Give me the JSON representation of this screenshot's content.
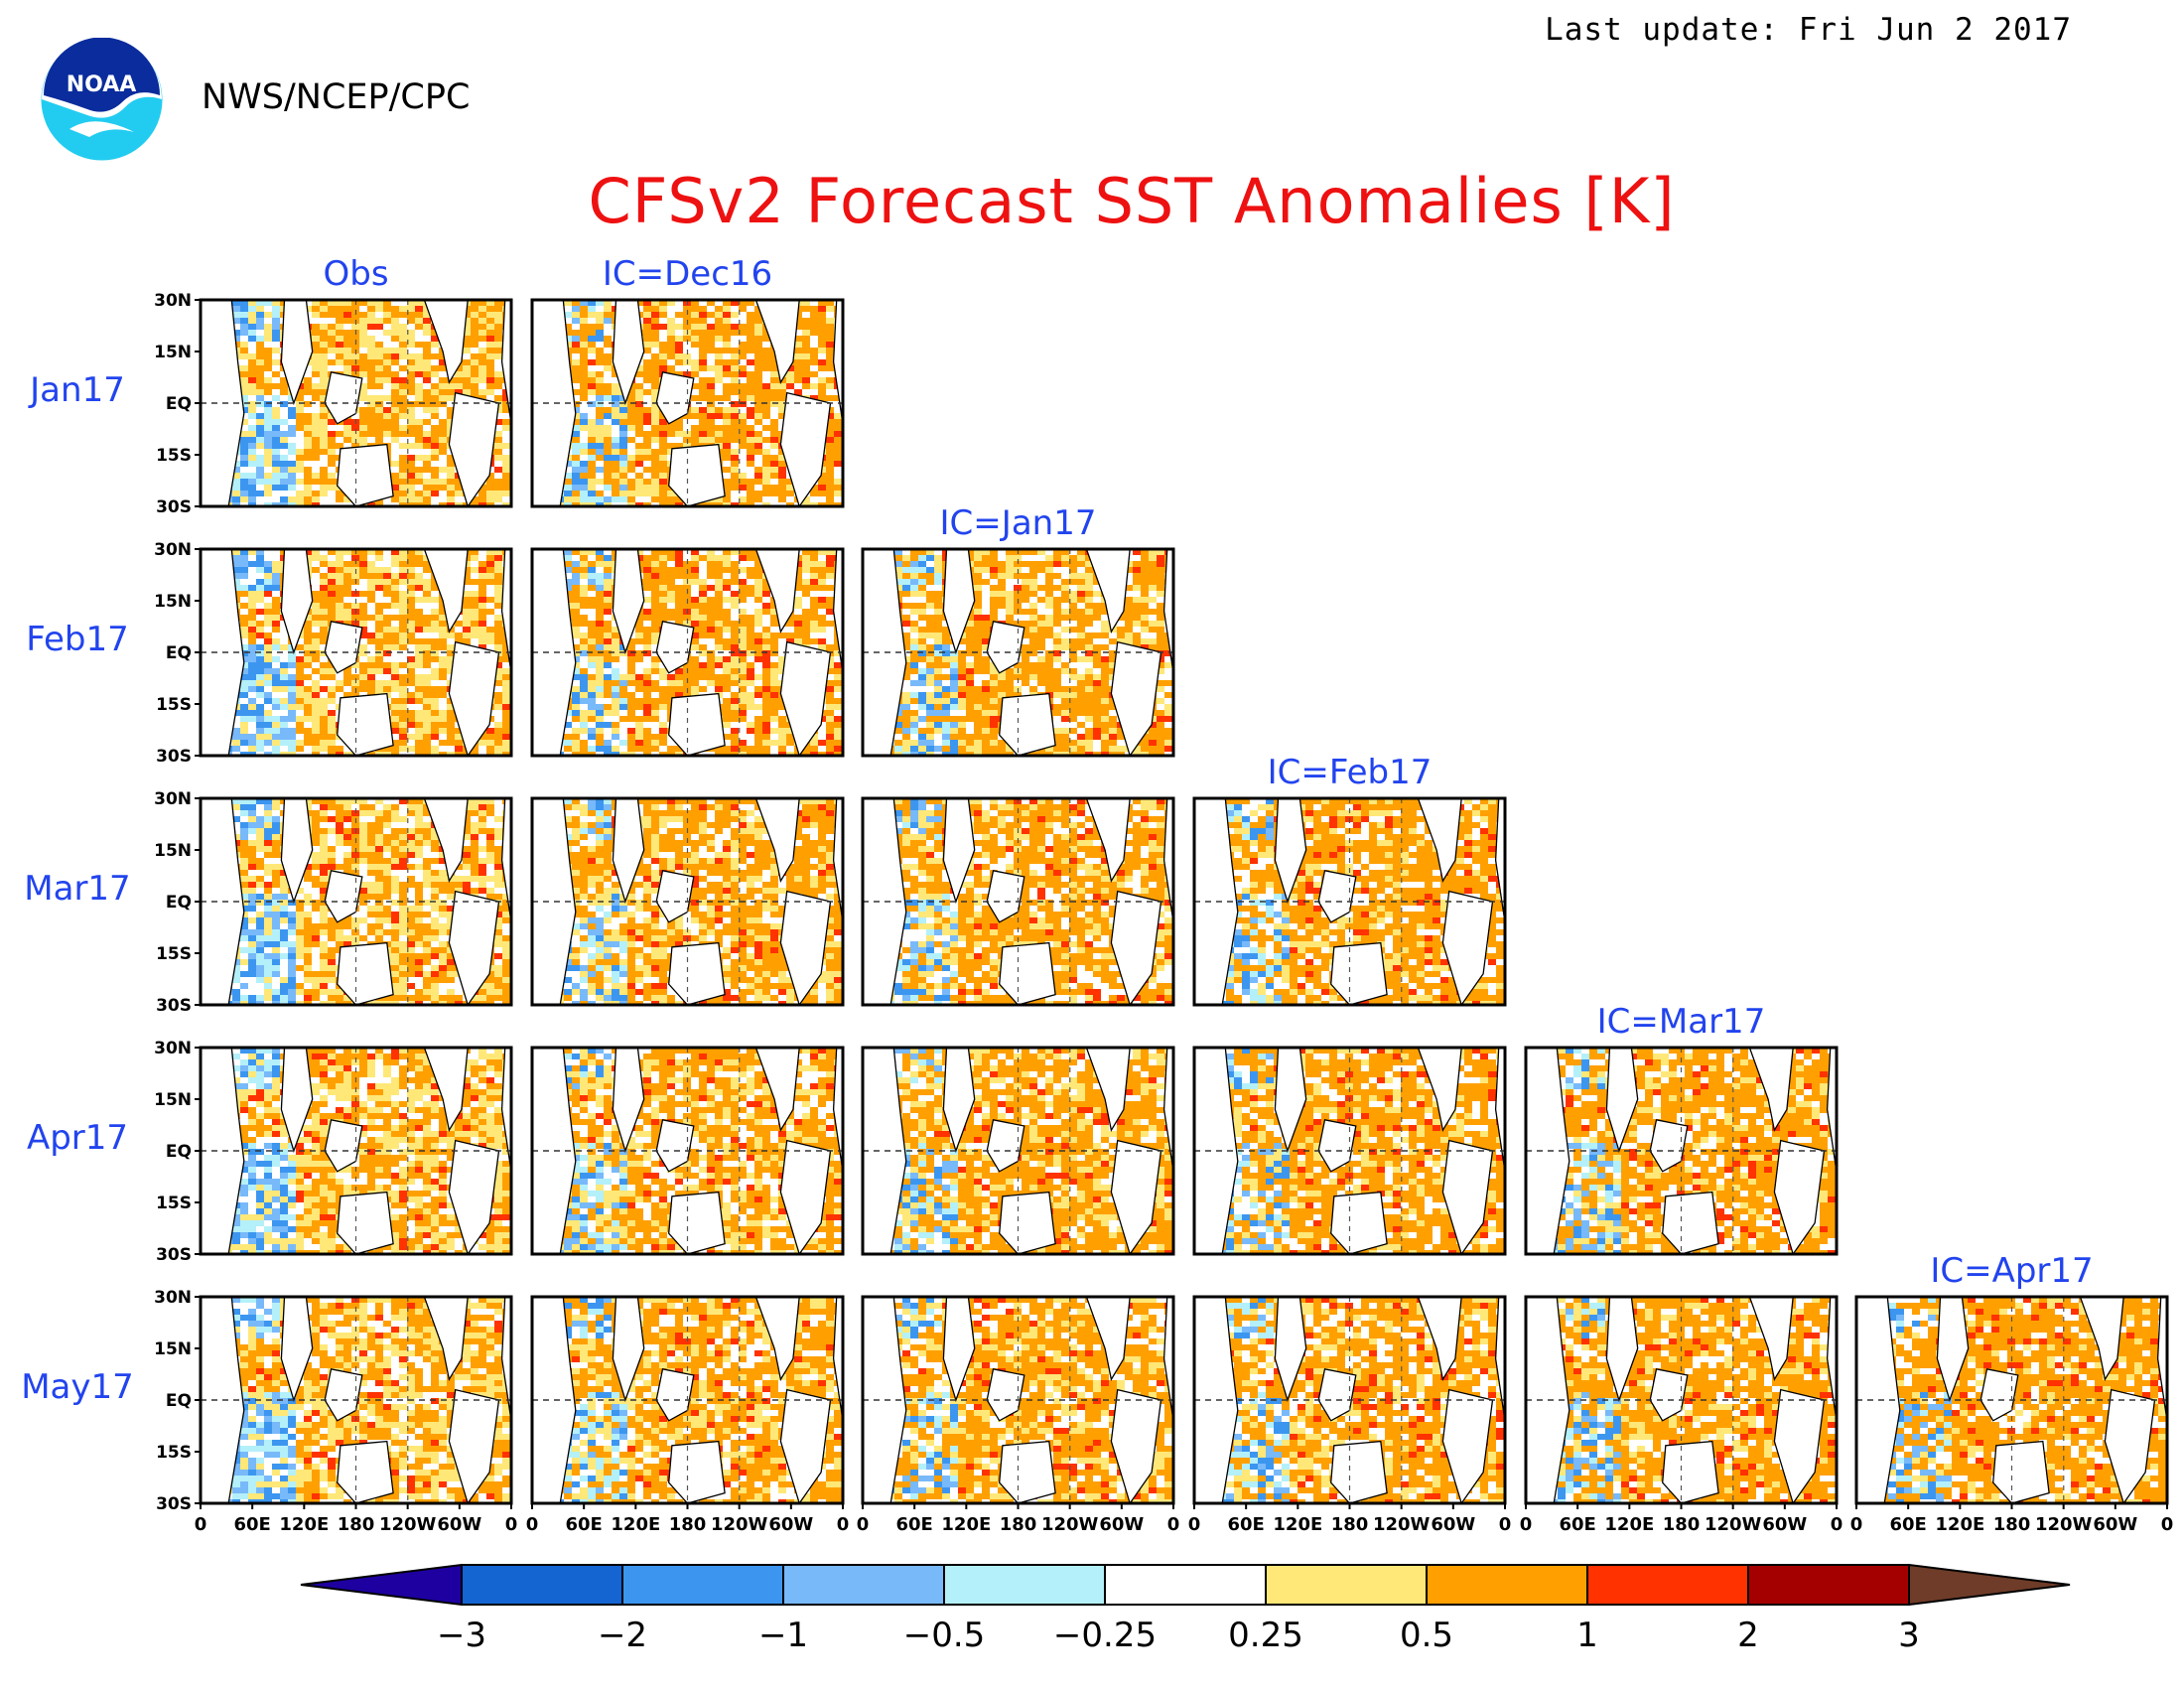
{
  "header": {
    "agency": "NWS/NCEP/CPC",
    "last_update": "Last update: Fri Jun 2 2017",
    "logo_text": "NOAA"
  },
  "chart_data": {
    "type": "heatmap",
    "title": "CFSv2 Forecast SST Anomalies [K]",
    "unit": "K",
    "columns": [
      "Obs",
      "IC=Dec16",
      "IC=Jan17",
      "IC=Feb17",
      "IC=Mar17",
      "IC=Apr17"
    ],
    "rows": [
      "Jan17",
      "Feb17",
      "Mar17",
      "Apr17",
      "May17"
    ],
    "lat_ticks": [
      "30N",
      "15N",
      "EQ",
      "15S",
      "30S"
    ],
    "lon_ticks": [
      "0",
      "60E",
      "120E",
      "180",
      "120W",
      "60W",
      "0"
    ],
    "lat_range": [
      -30,
      30
    ],
    "lon_range": [
      0,
      360
    ],
    "colorbar": {
      "ticks": [
        "−3",
        "−2",
        "−1",
        "−0.5",
        "−0.25",
        "0.25",
        "0.5",
        "1",
        "2",
        "3"
      ],
      "colors": [
        "#1e00a0",
        "#1464d2",
        "#3c96f0",
        "#78b9fa",
        "#b4f0fa",
        "#ffffff",
        "#ffe878",
        "#ffa000",
        "#ff3200",
        "#a50000",
        "#6e3c28"
      ]
    }
  }
}
